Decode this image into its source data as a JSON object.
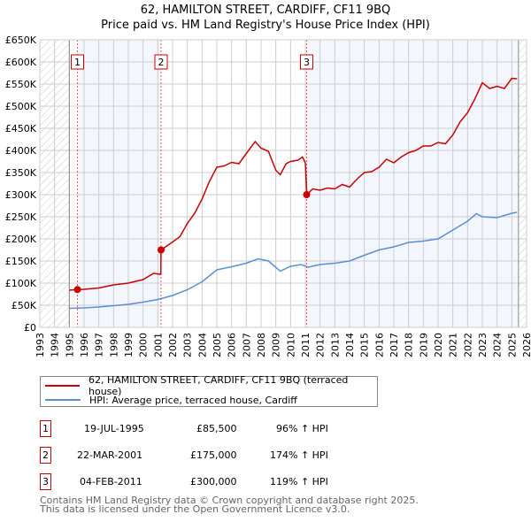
{
  "chart_data": {
    "type": "line",
    "title": "62, HAMILTON STREET, CARDIFF, CF11 9BQ",
    "subtitle": "Price paid vs. HM Land Registry's House Price Index (HPI)",
    "xlabel": "",
    "ylabel": "",
    "xlim": [
      1993,
      2026
    ],
    "ylim": [
      0,
      650000
    ],
    "grid": true,
    "x_ticks": [
      "1993",
      "1994",
      "1995",
      "1996",
      "1997",
      "1998",
      "1999",
      "2000",
      "2001",
      "2002",
      "2003",
      "2004",
      "2005",
      "2006",
      "2007",
      "2008",
      "2009",
      "2010",
      "2011",
      "2012",
      "2013",
      "2014",
      "2015",
      "2016",
      "2017",
      "2018",
      "2019",
      "2020",
      "2021",
      "2022",
      "2023",
      "2024",
      "2025",
      "2026"
    ],
    "y_ticks": [
      {
        "v": 0,
        "l": "£0"
      },
      {
        "v": 50000,
        "l": "£50K"
      },
      {
        "v": 100000,
        "l": "£100K"
      },
      {
        "v": 150000,
        "l": "£150K"
      },
      {
        "v": 200000,
        "l": "£200K"
      },
      {
        "v": 250000,
        "l": "£250K"
      },
      {
        "v": 300000,
        "l": "£300K"
      },
      {
        "v": 350000,
        "l": "£350K"
      },
      {
        "v": 400000,
        "l": "£400K"
      },
      {
        "v": 450000,
        "l": "£450K"
      },
      {
        "v": 500000,
        "l": "£500K"
      },
      {
        "v": 550000,
        "l": "£550K"
      },
      {
        "v": 600000,
        "l": "£600K"
      },
      {
        "v": 650000,
        "l": "£650K"
      }
    ],
    "data_range": [
      1995,
      2025.45
    ],
    "series": [
      {
        "name": "62, HAMILTON STREET, CARDIFF, CF11 9BQ (terraced house)",
        "color": "#cc0000",
        "x": [
          1995.0,
          1995.55,
          1996,
          1997,
          1998,
          1999,
          2000,
          2000.7,
          2001.2,
          2001.22,
          2002,
          2002.5,
          2003,
          2003.5,
          2004,
          2004.5,
          2005,
          2005.5,
          2006,
          2006.5,
          2007,
          2007.6,
          2008,
          2008.5,
          2009,
          2009.3,
          2009.7,
          2010,
          2010.5,
          2010.8,
          2011.0,
          2011.1,
          2011.5,
          2012,
          2012.5,
          2013,
          2013.5,
          2014,
          2014.5,
          2015,
          2015.5,
          2016,
          2016.5,
          2017,
          2017.5,
          2018,
          2018.5,
          2019,
          2019.5,
          2020,
          2020.5,
          2021,
          2021.5,
          2022,
          2022.5,
          2023,
          2023.5,
          2024,
          2024.5,
          2025,
          2025.35
        ],
        "y": [
          84000,
          85500,
          86000,
          89000,
          96000,
          100000,
          108000,
          122000,
          120000,
          175000,
          193000,
          205000,
          235000,
          258000,
          290000,
          330000,
          362000,
          365000,
          373000,
          370000,
          393000,
          420000,
          405000,
          398000,
          355000,
          345000,
          370000,
          375000,
          378000,
          385000,
          372000,
          300000,
          313000,
          310000,
          315000,
          313000,
          323000,
          317000,
          335000,
          350000,
          352000,
          362000,
          380000,
          372000,
          385000,
          395000,
          400000,
          410000,
          410000,
          418000,
          415000,
          435000,
          465000,
          485000,
          517000,
          553000,
          540000,
          545000,
          540000,
          563000,
          562000
        ]
      },
      {
        "name": "HPI: Average price, terraced house, Cardiff",
        "color": "#5b8fd4",
        "x": [
          1995,
          1996,
          1997,
          1998,
          1999,
          2000,
          2001,
          2002,
          2003,
          2004,
          2005,
          2006,
          2007,
          2007.8,
          2008.5,
          2009.3,
          2010,
          2010.7,
          2011.2,
          2012,
          2013,
          2014,
          2015,
          2016,
          2017,
          2018,
          2019,
          2020,
          2021,
          2022,
          2022.6,
          2023,
          2024,
          2025,
          2025.35
        ],
        "y": [
          43000,
          44000,
          46000,
          49000,
          52000,
          57000,
          63000,
          72000,
          85000,
          103000,
          130000,
          137000,
          145000,
          155000,
          150000,
          127000,
          138000,
          142000,
          136000,
          142000,
          145000,
          150000,
          163000,
          175000,
          182000,
          192000,
          195000,
          200000,
          220000,
          240000,
          257000,
          250000,
          248000,
          258000,
          260000
        ]
      }
    ],
    "sales": [
      {
        "n": "1",
        "x": 1995.55,
        "price": 85500,
        "date": "19-JUL-1995",
        "price_label": "£85,500",
        "hpi": "96% ↑ HPI"
      },
      {
        "n": "2",
        "x": 2001.22,
        "price": 175000,
        "date": "22-MAR-2001",
        "price_label": "£175,000",
        "hpi": "174% ↑ HPI"
      },
      {
        "n": "3",
        "x": 2011.09,
        "price": 300000,
        "date": "04-FEB-2011",
        "price_label": "£300,000",
        "hpi": "119% ↑ HPI"
      }
    ],
    "legend": [
      "62, HAMILTON STREET, CARDIFF, CF11 9BQ (terraced house)",
      "HPI: Average price, terraced house, Cardiff"
    ],
    "legend_placement": "below"
  },
  "footer": [
    "Contains HM Land Registry data © Crown copyright and database right 2025.",
    "This data is licensed under the Open Government Licence v3.0."
  ]
}
